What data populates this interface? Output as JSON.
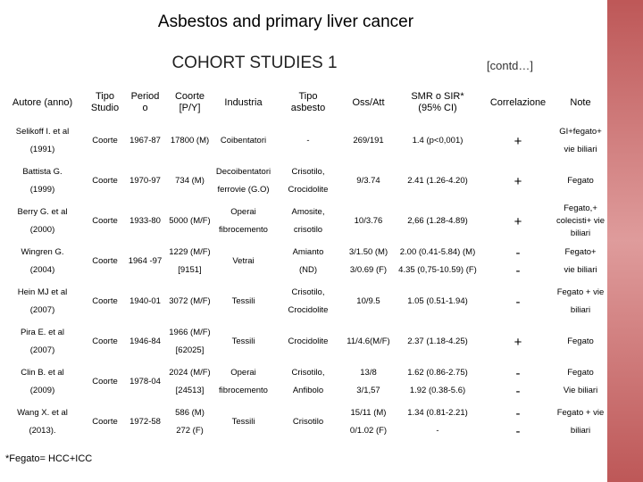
{
  "title": "Asbestos and primary liver cancer",
  "subtitle": "COHORT STUDIES 1",
  "contd": "[contd…]",
  "table": {
    "header": [
      "Autore (anno)",
      [
        "Tipo",
        "Studio"
      ],
      [
        "Period",
        "o"
      ],
      [
        "Coorte",
        "[P/Y]"
      ],
      "Industria",
      [
        "Tipo",
        "asbesto"
      ],
      "Oss/Att",
      [
        "SMR o SIR*",
        "(95% CI)"
      ],
      "Correlazione",
      "Note"
    ],
    "rows": [
      [
        [
          "Selikoff I. et al",
          "(1991)"
        ],
        "Coorte",
        "1967-87",
        "17800 (M)",
        "Coibentatori",
        "-",
        "269/191",
        "1.4 (p<0,001)",
        "+",
        [
          "GI+fegato+",
          "vie biliari"
        ]
      ],
      [
        [
          "Battista G.",
          "(1999)"
        ],
        "Coorte",
        "1970-97",
        "734 (M)",
        [
          "Decoibentatori",
          "ferrovie (G.O)"
        ],
        [
          "Crisotilo,",
          "Crocidolite"
        ],
        "9/3.74",
        "2.41 (1.26-4.20)",
        "+",
        "Fegato"
      ],
      [
        [
          "Berry G. et al",
          "(2000)"
        ],
        "Coorte",
        "1933-80",
        "5000 (M/F)",
        [
          "Operai",
          "fibrocemento"
        ],
        [
          "Amosite,",
          "crisotilo"
        ],
        "10/3.76",
        "2,66 (1.28-4.89)",
        "+",
        [
          "Fegato,+",
          "colecisti+ vie",
          "biliari"
        ]
      ],
      [
        [
          "Wingren G.",
          "(2004)"
        ],
        "Coorte",
        "1964 -97",
        [
          "1229 (M/F)",
          "[9151]"
        ],
        "Vetrai",
        [
          "Amianto",
          "(ND)"
        ],
        [
          "3/1.50 (M)",
          "3/0.69 (F)"
        ],
        [
          "2.00 (0.41-5.84) (M)",
          "4.35 (0,75-10.59) (F)"
        ],
        [
          "-",
          "-"
        ],
        [
          "Fegato+",
          "vie biliari"
        ]
      ],
      [
        [
          "Hein MJ et al",
          "(2007)"
        ],
        "Coorte",
        "1940-01",
        "3072 (M/F)",
        "Tessili",
        [
          "Crisotilo,",
          "Crocidolite"
        ],
        "10/9.5",
        "1.05 (0.51-1.94)",
        "-",
        [
          "Fegato + vie",
          "biliari"
        ]
      ],
      [
        [
          "Pira E. et al",
          "(2007)"
        ],
        "Coorte",
        "1946-84",
        [
          "1966 (M/F)",
          "[62025]"
        ],
        "Tessili",
        "Crocidolite",
        "11/4.6(M/F)",
        "2.37 (1.18-4.25)",
        "+",
        "Fegato"
      ],
      [
        [
          "Clin B. et al",
          "(2009)"
        ],
        "Coorte",
        "1978-04",
        [
          "2024 (M/F)",
          "[24513]"
        ],
        [
          "Operai",
          "fibrocemento"
        ],
        [
          "Crisotilo,",
          "Anfibolo"
        ],
        [
          "13/8",
          "3/1,57"
        ],
        [
          "1.62 (0.86-2.75)",
          "1.92 (0.38-5.6)"
        ],
        [
          "-",
          "-"
        ],
        [
          "Fegato",
          "Vie biliari"
        ]
      ],
      [
        [
          "Wang X. et al",
          "(2013)."
        ],
        "Coorte",
        "1972-58",
        [
          "586 (M)",
          "272 (F)"
        ],
        "Tessili",
        "Crisotilo",
        [
          "15/11 (M)",
          "0/1.02 (F)"
        ],
        [
          "1.34 (0.81-2.21)",
          "-"
        ],
        [
          "-",
          "-"
        ],
        [
          "Fegato + vie",
          "biliari"
        ]
      ]
    ]
  },
  "footnote": "*Fegato= HCC+ICC"
}
